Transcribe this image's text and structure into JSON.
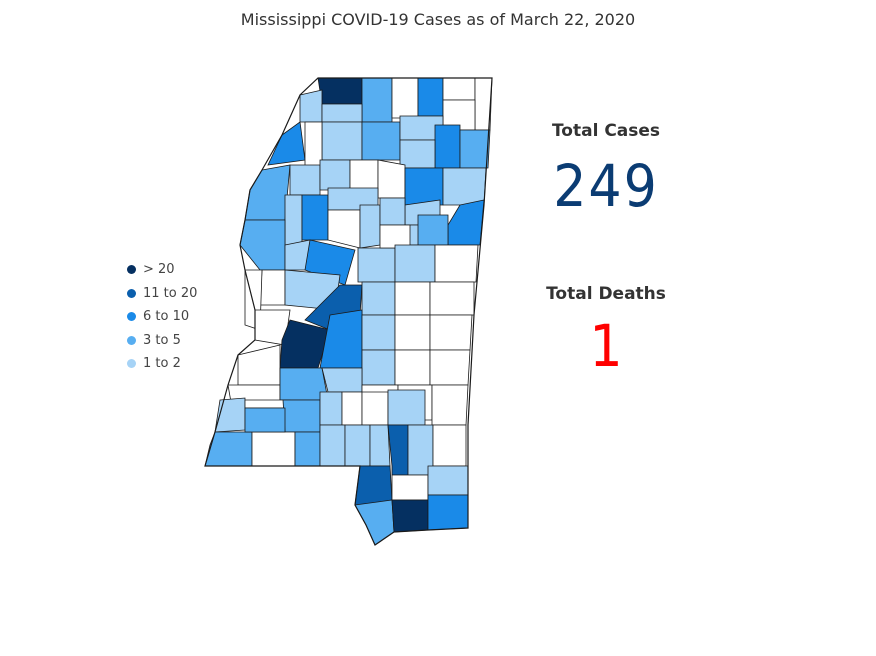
{
  "title": "Mississippi COVID-19 Cases as of March 22, 2020",
  "legend": [
    {
      "label": "> 20",
      "color": "#053061"
    },
    {
      "label": "11 to 20",
      "color": "#0b5fad"
    },
    {
      "label": "6 to 10",
      "color": "#1a8ae8"
    },
    {
      "label": "3 to 5",
      "color": "#57aef1"
    },
    {
      "label": "1 to 2",
      "color": "#a6d3f6"
    }
  ],
  "stats": {
    "total_cases_label": "Total Cases",
    "total_cases_value": "249",
    "total_deaths_label": "Total Deaths",
    "total_deaths_value": "1"
  },
  "colors": {
    "none": "#ffffff",
    "cases_value": "#0b3c73",
    "deaths_value": "#ff0000"
  }
}
